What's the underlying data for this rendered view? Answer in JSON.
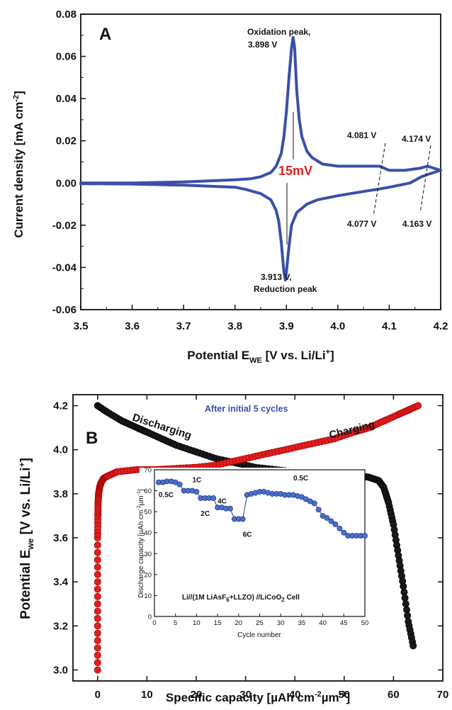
{
  "chart_data": [
    {
      "panel": "A",
      "type": "line",
      "xlabel_main": "Potential E",
      "xlabel_sub": "WE",
      "xlabel_tail": " [V vs. Li/Li",
      "xlabel_sup": "+",
      "xlabel_end": "]",
      "ylabel_main": "Current density [mA cm",
      "ylabel_sup": "-2",
      "ylabel_end": "]",
      "xlim": [
        3.5,
        4.2
      ],
      "ylim": [
        -0.06,
        0.08
      ],
      "xticks": [
        "3.5",
        "3.6",
        "3.7",
        "3.8",
        "3.9",
        "4.0",
        "4.1",
        "4.2"
      ],
      "yticks": [
        "-0.06",
        "-0.04",
        "-0.02",
        "0.00",
        "0.02",
        "0.04",
        "0.06",
        "0.08"
      ],
      "color": "#3a4fa8",
      "series": [
        {
          "x": [
            3.5,
            3.6,
            3.7,
            3.75,
            3.8,
            3.83,
            3.85,
            3.87,
            3.88,
            3.89,
            3.895,
            3.9,
            3.905,
            3.91,
            3.913,
            3.916,
            3.92,
            3.925,
            3.93,
            3.94,
            3.95,
            3.97,
            4.0,
            4.03,
            4.06,
            4.081,
            4.1,
            4.13,
            4.16,
            4.174,
            4.2
          ],
          "y": [
            0.0,
            0.0,
            0.0005,
            0.001,
            0.0015,
            0.002,
            0.003,
            0.005,
            0.008,
            0.014,
            0.022,
            0.034,
            0.05,
            0.064,
            0.069,
            0.064,
            0.044,
            0.03,
            0.022,
            0.015,
            0.012,
            0.009,
            0.008,
            0.008,
            0.008,
            0.008,
            0.006,
            0.006,
            0.007,
            0.008,
            0.006
          ]
        },
        {
          "x": [
            4.2,
            4.174,
            4.163,
            4.14,
            4.1,
            4.077,
            4.05,
            4.0,
            3.96,
            3.94,
            3.92,
            3.91,
            3.905,
            3.9,
            3.898,
            3.895,
            3.89,
            3.885,
            3.88,
            3.87,
            3.85,
            3.82,
            3.8,
            3.75,
            3.7,
            3.6,
            3.5
          ],
          "y": [
            0.006,
            0.004,
            0.003,
            0.0,
            -0.002,
            -0.003,
            -0.004,
            -0.006,
            -0.008,
            -0.01,
            -0.014,
            -0.02,
            -0.03,
            -0.042,
            -0.046,
            -0.042,
            -0.028,
            -0.018,
            -0.013,
            -0.008,
            -0.005,
            -0.003,
            -0.002,
            -0.0015,
            -0.001,
            -0.0005,
            -0.0003
          ]
        }
      ],
      "annotations": {
        "ox_label1": "Oxidation peak,",
        "ox_label2": "3.898 V",
        "red_label1": "3.913 V,",
        "red_label2": "Reduction peak",
        "delta": "15mV",
        "v1": "4.081 V",
        "v2": "4.174 V",
        "v3": "4.077 V",
        "v4": "4.163 V"
      },
      "panel_letter": "A"
    },
    {
      "panel": "B",
      "type": "scatter",
      "xlabel_main": "Specific capacity [",
      "xlabel_mu": "µ",
      "xlabel_mid": "Ah cm",
      "xlabel_sup1": "-2",
      "xlabel_mu2": "µ",
      "xlabel_m": "m",
      "xlabel_sup2": "-1",
      "xlabel_end": "]",
      "ylabel_main": "Potential E",
      "ylabel_sub": "we",
      "ylabel_tail": " [V vs. Li/Li",
      "ylabel_sup": "+",
      "ylabel_end": "]",
      "xlim": [
        -5,
        70
      ],
      "ylim": [
        2.95,
        4.25
      ],
      "xticks": [
        "0",
        "10",
        "20",
        "30",
        "40",
        "50",
        "60",
        "70"
      ],
      "yticks": [
        "3.0",
        "3.2",
        "3.4",
        "3.6",
        "3.8",
        "4.0",
        "4.2"
      ],
      "series": [
        {
          "name": "Discharging",
          "color": "#1a1a1a",
          "x": [
            0,
            2,
            5,
            8,
            10,
            13,
            16,
            20,
            24,
            28,
            32,
            36,
            40,
            44,
            48,
            52,
            55,
            57,
            58,
            59,
            60,
            61,
            62,
            63,
            64
          ],
          "y": [
            4.2,
            4.17,
            4.13,
            4.1,
            4.08,
            4.05,
            4.02,
            3.99,
            3.96,
            3.94,
            3.92,
            3.91,
            3.9,
            3.895,
            3.89,
            3.885,
            3.875,
            3.86,
            3.83,
            3.76,
            3.66,
            3.52,
            3.38,
            3.22,
            3.11
          ]
        },
        {
          "name": "Charging",
          "color": "#e02020",
          "x": [
            0,
            0,
            0,
            0,
            0.05,
            0.1,
            0.2,
            0.4,
            0.7,
            1.2,
            2,
            4,
            8,
            12,
            16,
            20,
            24,
            28,
            32,
            36,
            40,
            44,
            48,
            52,
            55,
            58,
            61,
            63,
            65
          ],
          "y": [
            3.0,
            3.2,
            3.4,
            3.6,
            3.7,
            3.76,
            3.8,
            3.83,
            3.85,
            3.87,
            3.88,
            3.9,
            3.91,
            3.91,
            3.915,
            3.92,
            3.93,
            3.95,
            3.97,
            3.99,
            4.01,
            4.03,
            4.05,
            4.08,
            4.1,
            4.13,
            4.16,
            4.18,
            4.2
          ]
        }
      ],
      "annotations": {
        "discharging": "Discharging",
        "charging": "Charging",
        "after": "After initial 5 cycles"
      },
      "panel_letter": "B",
      "inset": {
        "type": "scatter",
        "xlabel": "Cycle number",
        "ylabel_main": "Discharge capacity [",
        "ylabel_mu": "µ",
        "ylabel_mid": "Ah cm",
        "ylabel_sup1": "-2",
        "ylabel_mu2": "µ",
        "ylabel_m": "m",
        "ylabel_sup2": "-1",
        "ylabel_end": "]",
        "xlim": [
          0,
          50
        ],
        "ylim": [
          0,
          70
        ],
        "xticks": [
          "0",
          "5",
          "10",
          "15",
          "20",
          "25",
          "30",
          "35",
          "40",
          "45",
          "50"
        ],
        "yticks": [
          "0",
          "10",
          "20",
          "30",
          "40",
          "50",
          "60",
          "70"
        ],
        "color": "#4a6fd0",
        "x": [
          1,
          2,
          3,
          4,
          5,
          6,
          7,
          8,
          9,
          10,
          11,
          12,
          13,
          14,
          15,
          16,
          17,
          18,
          19,
          20,
          21,
          22,
          23,
          24,
          25,
          26,
          27,
          28,
          29,
          30,
          31,
          32,
          33,
          34,
          35,
          36,
          37,
          38,
          39,
          40,
          41,
          42,
          43,
          44,
          45,
          46,
          47,
          48,
          49,
          50
        ],
        "y": [
          64,
          64,
          64.5,
          64.5,
          64,
          63,
          60,
          60,
          60,
          59.5,
          56.5,
          56.5,
          56.5,
          56.5,
          52,
          52,
          51.5,
          51.5,
          46.5,
          46.5,
          46.5,
          58,
          58.5,
          59,
          59.5,
          59.5,
          59,
          58.5,
          58.5,
          58.5,
          58,
          58,
          58,
          57.5,
          57,
          56,
          55,
          54,
          51,
          48,
          47,
          45.5,
          44,
          42,
          40,
          38.5,
          38.5,
          38.5,
          38.5,
          38.5
        ],
        "rate_labels": [
          "0.5C",
          "1C",
          "2C",
          "4C",
          "6C",
          "0.5C"
        ],
        "cell_label1": "Li//(1M LiAsF",
        "cell_label_sub": "6",
        "cell_label2": "+LLZO) //LiCoO",
        "cell_label_sub2": "2",
        "cell_label3": " Cell"
      }
    }
  ]
}
